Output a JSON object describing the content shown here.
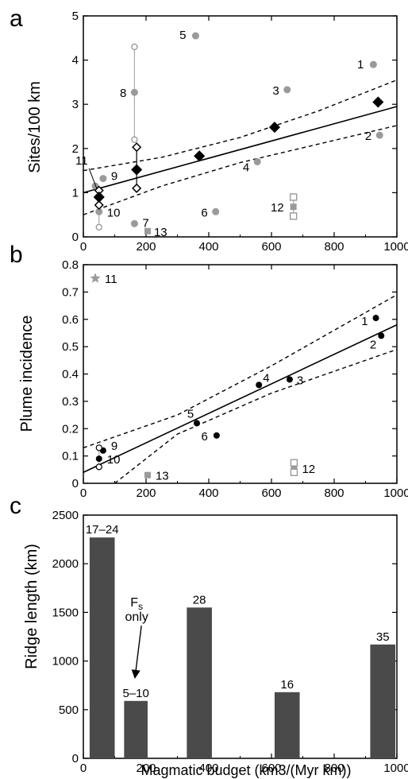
{
  "panels": [
    {
      "letter": "a",
      "ylabel": "Sites/100 km",
      "xlabel": "",
      "xlim": [
        0,
        1000
      ],
      "ylim": [
        0,
        5
      ],
      "xticks": [
        "0",
        "200",
        "400",
        "600",
        "800",
        "1000"
      ],
      "yticks": [
        "0",
        "1",
        "2",
        "3",
        "4",
        "5"
      ]
    },
    {
      "letter": "b",
      "ylabel": "Plume incidence",
      "xlabel": "",
      "xlim": [
        0,
        1000
      ],
      "ylim": [
        0,
        0.8
      ],
      "xticks": [
        "0",
        "200",
        "400",
        "600",
        "800",
        "1000"
      ],
      "yticks": [
        "0",
        "0.1",
        "0.2",
        "0.3",
        "0.4",
        "0.5",
        "0.6",
        "0.7",
        "0.8"
      ]
    },
    {
      "letter": "c",
      "ylabel": "Ridge length (km)",
      "xlabel": "Magmatic budget (km3/(Myr km))",
      "xlim": [
        0,
        1000
      ],
      "ylim": [
        0,
        2500
      ],
      "xticks": [
        "0",
        "200",
        "400",
        "600",
        "800",
        "1000"
      ],
      "yticks": [
        "0",
        "500",
        "1000",
        "1500",
        "2000",
        "2500"
      ]
    }
  ],
  "chart_data": [
    {
      "type": "scatter",
      "panel": "a",
      "ylabel": "Sites/100 km",
      "xlim": [
        0,
        1000
      ],
      "ylim": [
        0,
        5
      ],
      "colors": {
        "gray": "#9a9a9a",
        "black": "#000000"
      },
      "labeled_points": [
        {
          "label": "1",
          "x": 925,
          "y": 3.9
        },
        {
          "label": "2",
          "x": 945,
          "y": 2.3
        },
        {
          "label": "3",
          "x": 650,
          "y": 3.33
        },
        {
          "label": "4",
          "x": 555,
          "y": 1.7
        },
        {
          "label": "5",
          "x": 358,
          "y": 4.55
        },
        {
          "label": "6",
          "x": 422,
          "y": 0.57
        },
        {
          "label": "7",
          "x": 163,
          "y": 0.3
        },
        {
          "label": "8",
          "x": 163,
          "y": 3.27
        },
        {
          "label": "9",
          "x": 63,
          "y": 1.32
        },
        {
          "label": "10",
          "x": 50,
          "y": 0.57
        },
        {
          "label": "11",
          "x": 38,
          "y": 1.15
        },
        {
          "label": "12",
          "x": 670,
          "y": 0.68
        },
        {
          "label": "13",
          "x": 205,
          "y": 0.13
        }
      ],
      "open_circles": [
        {
          "x": 163,
          "y": 4.3
        },
        {
          "x": 163,
          "y": 2.2
        },
        {
          "x": 50,
          "y": 0.22
        }
      ],
      "open_squares": [
        {
          "x": 670,
          "y": 0.9
        },
        {
          "x": 670,
          "y": 0.47
        }
      ],
      "black_diamonds": [
        {
          "x": 940,
          "y": 3.05
        },
        {
          "x": 610,
          "y": 2.48
        },
        {
          "x": 370,
          "y": 1.83
        },
        {
          "x": 170,
          "y": 1.52
        },
        {
          "x": 50,
          "y": 0.9
        }
      ],
      "open_diamonds": [
        {
          "x": 170,
          "y": 2.03
        },
        {
          "x": 170,
          "y": 1.1
        },
        {
          "x": 50,
          "y": 1.05
        },
        {
          "x": 50,
          "y": 0.72
        }
      ],
      "fit_line": {
        "x": [
          0,
          1000
        ],
        "y": [
          1.0,
          2.95
        ]
      },
      "confidence_upper": {
        "x": [
          0,
          250,
          500,
          750,
          1000
        ],
        "y": [
          1.5,
          1.8,
          2.25,
          2.85,
          3.55
        ]
      },
      "confidence_lower": {
        "x": [
          0,
          250,
          500,
          750,
          1000
        ],
        "y": [
          0.5,
          1.15,
          1.68,
          2.1,
          2.52
        ]
      }
    },
    {
      "type": "scatter",
      "panel": "b",
      "ylabel": "Plume incidence",
      "xlim": [
        0,
        1000
      ],
      "ylim": [
        0,
        0.8
      ],
      "labeled_points": [
        {
          "label": "1",
          "x": 933,
          "y": 0.605
        },
        {
          "label": "2",
          "x": 950,
          "y": 0.54
        },
        {
          "label": "3",
          "x": 658,
          "y": 0.38
        },
        {
          "label": "4",
          "x": 560,
          "y": 0.36
        },
        {
          "label": "5",
          "x": 362,
          "y": 0.22
        },
        {
          "label": "6",
          "x": 425,
          "y": 0.175
        },
        {
          "label": "9",
          "x": 63,
          "y": 0.12
        },
        {
          "label": "10",
          "x": 50,
          "y": 0.09
        },
        {
          "label": "11",
          "x": 38,
          "y": 0.75
        },
        {
          "label": "12",
          "x": 672,
          "y": 0.055
        },
        {
          "label": "13",
          "x": 205,
          "y": 0.03
        }
      ],
      "open_circles": [
        {
          "x": 50,
          "y": 0.13
        },
        {
          "x": 50,
          "y": 0.06
        }
      ],
      "open_squares": [
        {
          "x": 672,
          "y": 0.075
        },
        {
          "x": 672,
          "y": 0.04
        }
      ],
      "fit_line": {
        "x": [
          0,
          1000
        ],
        "y": [
          0.04,
          0.58
        ]
      },
      "confidence_upper": {
        "x": [
          0,
          300,
          600,
          1000
        ],
        "y": [
          0.13,
          0.25,
          0.43,
          0.69
        ]
      },
      "confidence_lower": {
        "x": [
          100,
          300,
          600,
          1000
        ],
        "y": [
          0.0,
          0.18,
          0.33,
          0.49
        ]
      }
    },
    {
      "type": "bar",
      "panel": "c",
      "ylabel": "Ridge length (km)",
      "xlabel": "Magmatic budget (km3/(Myr km))",
      "xlim": [
        0,
        1000
      ],
      "ylim": [
        0,
        2500
      ],
      "color": "#4a4a4a",
      "bars": [
        {
          "x_start": 20,
          "x_end": 100,
          "value": 2270,
          "label": "17–24"
        },
        {
          "x_start": 130,
          "x_end": 205,
          "value": 590,
          "label": "5–10"
        },
        {
          "x_start": 330,
          "x_end": 410,
          "value": 1550,
          "label": "28"
        },
        {
          "x_start": 610,
          "x_end": 690,
          "value": 680,
          "label": "16"
        },
        {
          "x_start": 915,
          "x_end": 995,
          "value": 1170,
          "label": "35"
        }
      ],
      "annotation": {
        "text_main": "F",
        "text_sub": "s",
        "text_line2": "only",
        "points_to_x": 170,
        "points_to_value": 600
      }
    }
  ]
}
